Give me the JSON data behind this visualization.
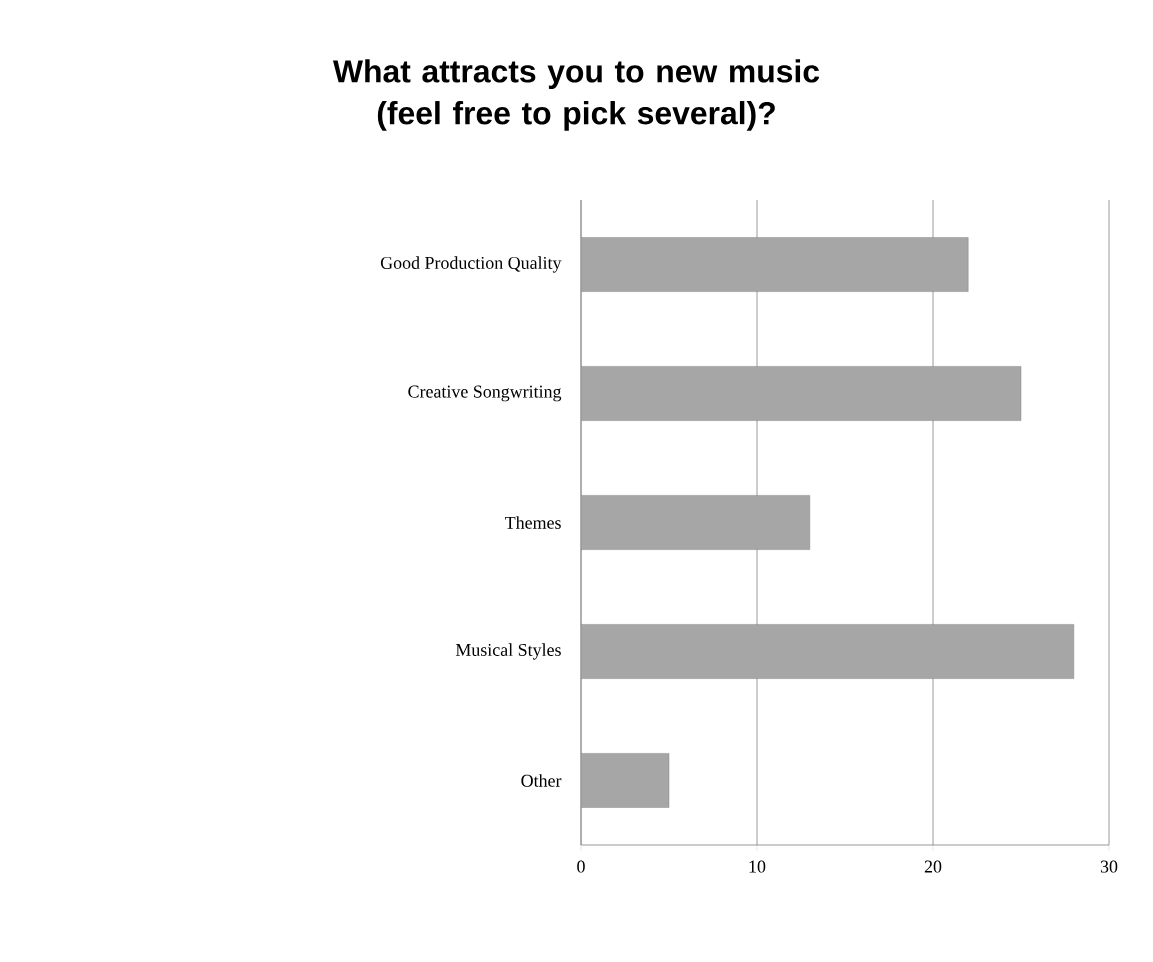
{
  "chart_data": {
    "type": "bar",
    "orientation": "horizontal",
    "title": "What attracts you to new music (feel free to pick several)?",
    "categories": [
      "Good Production Quality",
      "Creative Songwriting",
      "Themes",
      "Musical Styles",
      "Other"
    ],
    "values": [
      22,
      25,
      13,
      28,
      5
    ],
    "color": "#a6a6a6",
    "xlim": [
      0,
      30
    ],
    "xticks": [
      0,
      10,
      20,
      30
    ],
    "grid": "x"
  }
}
